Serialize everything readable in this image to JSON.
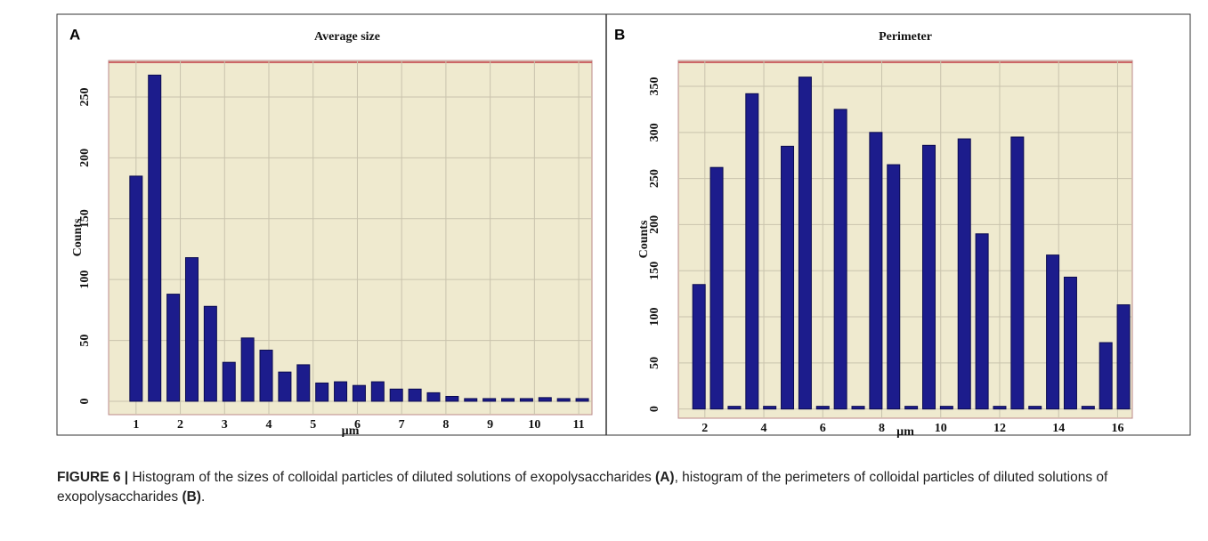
{
  "chart_data": [
    {
      "type": "bar",
      "panel": "A",
      "title": "Average size",
      "xlabel": "µm",
      "ylabel": "Counts",
      "color": "#1c1c8c",
      "x": [
        1,
        1.42,
        1.84,
        2.26,
        2.68,
        3.1,
        3.52,
        3.94,
        4.36,
        4.78,
        5.2,
        5.62,
        6.04,
        6.46,
        6.88,
        7.3,
        7.72,
        8.14,
        8.56,
        8.98,
        9.4,
        9.82,
        10.24,
        10.66,
        11.08
      ],
      "values": [
        185,
        268,
        88,
        118,
        78,
        32,
        52,
        42,
        24,
        30,
        15,
        16,
        13,
        16,
        10,
        10,
        7,
        4,
        2,
        2,
        2,
        2,
        3,
        1,
        1
      ],
      "xlim": [
        0.38,
        11.3
      ],
      "ylim": [
        -11,
        280
      ],
      "xticks": [
        1,
        2,
        3,
        4,
        5,
        6,
        7,
        8,
        9,
        10,
        11
      ],
      "yticks": [
        0,
        50,
        100,
        150,
        200,
        250
      ],
      "grid": true
    },
    {
      "type": "bar",
      "panel": "B",
      "title": "Perimeter",
      "xlabel": "µm",
      "ylabel": "Counts",
      "color": "#1c1c8c",
      "x": [
        1.8,
        2.4,
        3.0,
        3.6,
        4.2,
        4.8,
        5.4,
        6.0,
        6.6,
        7.2,
        7.8,
        8.4,
        9.0,
        9.6,
        10.2,
        10.8,
        11.4,
        12.0,
        12.6,
        13.2,
        13.8,
        14.4,
        15.0,
        15.6,
        16.2
      ],
      "values": [
        135,
        262,
        0,
        342,
        0,
        285,
        360,
        0,
        325,
        0,
        300,
        265,
        0,
        286,
        0,
        293,
        190,
        0,
        295,
        0,
        167,
        143,
        0,
        72,
        113
      ],
      "xlim": [
        1.1,
        16.5
      ],
      "ylim": [
        -10,
        378
      ],
      "xticks": [
        2,
        4,
        6,
        8,
        10,
        12,
        14,
        16
      ],
      "yticks": [
        0,
        50,
        100,
        150,
        200,
        250,
        300,
        350
      ],
      "grid": true
    }
  ],
  "caption": {
    "label": "FIGURE 6 |",
    "text1": " Histogram of the sizes of colloidal particles of diluted solutions of exopolysaccharides ",
    "ref_a": "(A)",
    "text2": ", histogram of the perimeters of colloidal particles of diluted solutions of exopolysaccharides ",
    "ref_b": "(B)",
    "end": "."
  }
}
